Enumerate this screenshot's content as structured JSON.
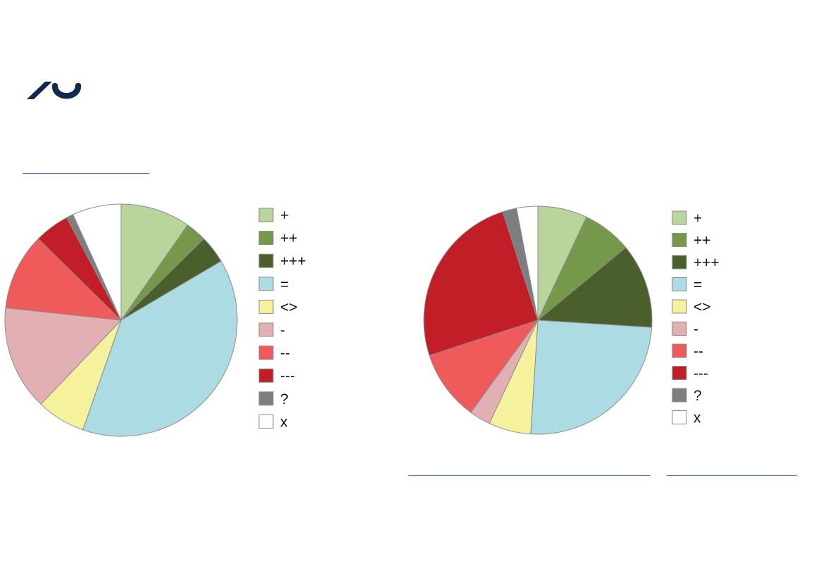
{
  "logo": {
    "name": "university-logo-mark",
    "color": "#0f2a4e"
  },
  "links": {
    "color": "#4a6fc2"
  },
  "chart_data": [
    {
      "type": "pie",
      "slices": [
        {
          "label": "+",
          "value": 10,
          "color": "#b8d59c"
        },
        {
          "label": "++",
          "value": 3,
          "color": "#76984a"
        },
        {
          "label": "+++",
          "value": 4,
          "color": "#4b5f2c"
        },
        {
          "label": "=",
          "value": 40,
          "color": "#acdbe4"
        },
        {
          "label": "<>",
          "value": 7,
          "color": "#f5f19c"
        },
        {
          "label": "-",
          "value": 15,
          "color": "#e2b0b2"
        },
        {
          "label": "--",
          "value": 11,
          "color": "#ef5a5b"
        },
        {
          "label": "---",
          "value": 5,
          "color": "#c21e28"
        },
        {
          "label": "?",
          "value": 1,
          "color": "#7d7e80"
        },
        {
          "label": "x",
          "value": 7,
          "color": "#ffffff"
        }
      ],
      "legend_position": "right"
    },
    {
      "type": "pie",
      "slices": [
        {
          "label": "+",
          "value": 7,
          "color": "#b8d59c"
        },
        {
          "label": "++",
          "value": 7,
          "color": "#76984a"
        },
        {
          "label": "+++",
          "value": 12,
          "color": "#4b5f2c"
        },
        {
          "label": "=",
          "value": 25,
          "color": "#acdbe4"
        },
        {
          "label": "<>",
          "value": 6,
          "color": "#f5f19c"
        },
        {
          "label": "-",
          "value": 3,
          "color": "#e2b0b2"
        },
        {
          "label": "--",
          "value": 10,
          "color": "#ef5a5b"
        },
        {
          "label": "---",
          "value": 25,
          "color": "#c21e28"
        },
        {
          "label": "?",
          "value": 2,
          "color": "#7d7e80"
        },
        {
          "label": "x",
          "value": 3,
          "color": "#ffffff"
        }
      ],
      "legend_position": "right"
    }
  ]
}
